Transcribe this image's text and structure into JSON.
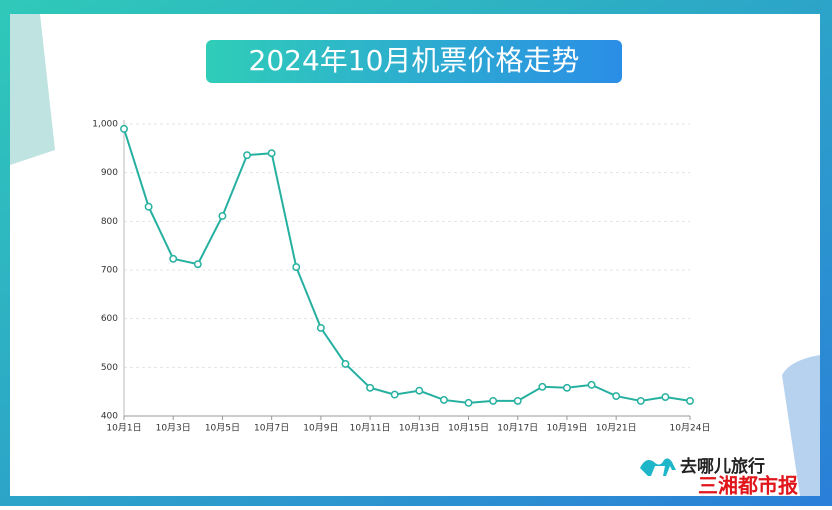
{
  "chart_data": {
    "type": "line",
    "title": "2024年10月机票价格走势",
    "categories": [
      "10月1日",
      null,
      "10月3日",
      null,
      "10月5日",
      null,
      "10月7日",
      null,
      "10月9日",
      null,
      "10月11日",
      null,
      "10月13日",
      null,
      "10月15日",
      null,
      "10月17日",
      null,
      "10月19日",
      null,
      "10月21日",
      null,
      null,
      "10月24日"
    ],
    "values": [
      990,
      830,
      723,
      712,
      811,
      936,
      940,
      706,
      581,
      507,
      458,
      444,
      452,
      433,
      427,
      431,
      431,
      460,
      458,
      464,
      441,
      431,
      439,
      431
    ],
    "color": "#26b0a0",
    "ylim": [
      400,
      1000
    ],
    "yticks": [
      400,
      500,
      600,
      700,
      800,
      900,
      {
        "value": 1000,
        "label": "1,000"
      }
    ],
    "grid": true
  },
  "branding": {
    "travel": "去哪儿旅行",
    "newspaper": "三湘都市报"
  }
}
